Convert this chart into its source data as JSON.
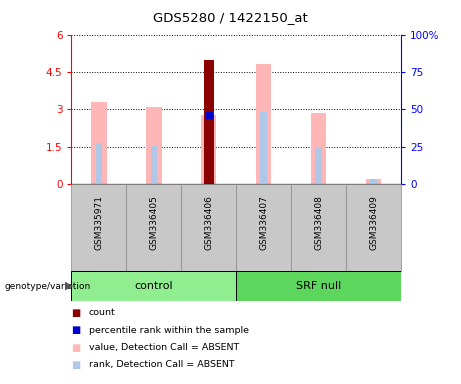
{
  "title": "GDS5280 / 1422150_at",
  "samples": [
    "GSM335971",
    "GSM336405",
    "GSM336406",
    "GSM336407",
    "GSM336408",
    "GSM336409"
  ],
  "ylim_left": [
    0,
    6
  ],
  "ylim_right": [
    0,
    100
  ],
  "yticks_left": [
    0,
    1.5,
    3.0,
    4.5,
    6
  ],
  "ytick_labels_left": [
    "0",
    "1.5",
    "3",
    "4.5",
    "6"
  ],
  "yticks_right": [
    0,
    25,
    50,
    75,
    100
  ],
  "ytick_labels_right": [
    "0",
    "25",
    "50",
    "75",
    "100%"
  ],
  "pink_bars": [
    3.3,
    3.1,
    2.77,
    4.82,
    2.85,
    0.22
  ],
  "light_blue_bars": [
    1.65,
    1.55,
    1.55,
    2.9,
    1.5,
    0.22
  ],
  "dark_red_bar_index": 2,
  "dark_red_bar_value": 5.0,
  "blue_marker_index": 2,
  "blue_marker_value": 2.77,
  "dark_red_color": "#8B0000",
  "pink_color": "#FFB6B6",
  "light_blue_color": "#B0C8E8",
  "blue_color": "#0000CC",
  "control_color": "#90EE90",
  "srf_color": "#5CD65C",
  "plot_bg_color": "#FFFFFF",
  "sample_box_color": "#C8C8C8",
  "legend_items": [
    {
      "label": "count",
      "color": "#8B0000"
    },
    {
      "label": "percentile rank within the sample",
      "color": "#0000CC"
    },
    {
      "label": "value, Detection Call = ABSENT",
      "color": "#FFB6B6"
    },
    {
      "label": "rank, Detection Call = ABSENT",
      "color": "#B0C8E8"
    }
  ]
}
